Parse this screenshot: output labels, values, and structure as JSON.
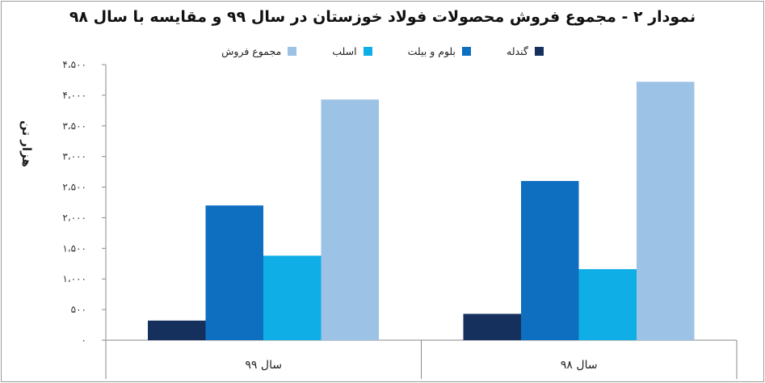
{
  "chart_data": {
    "type": "bar",
    "title": "نمودار ۲ - مجموع فروش محصولات فولاد خوزستان در سال ۹۹ و مقایسه با سال ۹۸",
    "ylabel": "هزار تن",
    "xlabel": "",
    "categories": [
      "سال ۹۹",
      "سال ۹۸"
    ],
    "ylim": [
      0,
      4500
    ],
    "yticks": [
      0,
      500,
      1000,
      1500,
      2000,
      2500,
      3000,
      3500,
      4000,
      4500
    ],
    "ytick_labels": [
      "۰",
      "۵۰۰",
      "۱،۰۰۰",
      "۱،۵۰۰",
      "۲،۰۰۰",
      "۲،۵۰۰",
      "۳،۰۰۰",
      "۳،۵۰۰",
      "۴،۰۰۰",
      "۴،۵۰۰"
    ],
    "grid": false,
    "legend_position": "top",
    "series": [
      {
        "name": "گندله",
        "color": "#16305e",
        "values": [
          320,
          430
        ]
      },
      {
        "name": "بلوم و بیلت",
        "color": "#0e6fc1",
        "values": [
          2200,
          2600
        ]
      },
      {
        "name": "اسلب",
        "color": "#10aee6",
        "values": [
          1380,
          1160
        ]
      },
      {
        "name": "مجموع فروش",
        "color": "#9cc3e5",
        "values": [
          3930,
          4220
        ]
      }
    ]
  }
}
